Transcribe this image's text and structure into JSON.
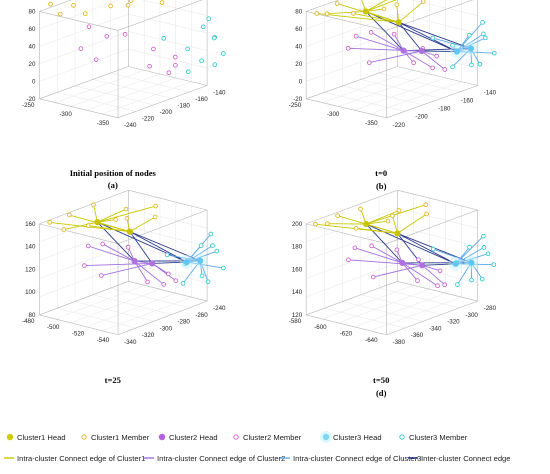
{
  "chart_data": [
    {
      "type": "scatter3d",
      "caption_title": "Initial position of nodes",
      "label": "(a)",
      "xlim": [
        -250,
        -140
      ],
      "ylim": [
        -350,
        -250
      ],
      "zlim": [
        -20,
        80
      ],
      "zticks": [
        "80",
        "60",
        "40",
        "20",
        "0",
        "-20"
      ],
      "left_ticks": [
        "-250",
        "-300",
        "-350"
      ],
      "right_ticks": [
        "-240",
        "-220",
        "-200",
        "-180",
        "-160",
        "-140"
      ],
      "show_edges": false
    },
    {
      "type": "network3d",
      "caption_title": "t=0",
      "label": "(b)",
      "zlim": [
        -20,
        80
      ],
      "zticks": [
        "80",
        "60",
        "40",
        "20",
        "0",
        "-20"
      ],
      "left_ticks": [
        "-250",
        "-300",
        "-350"
      ],
      "right_ticks": [
        "-220",
        "-200",
        "-180",
        "-160",
        "-140"
      ],
      "show_edges": true
    },
    {
      "type": "network3d",
      "caption_title": "t=25",
      "label": "",
      "zlim": [
        80,
        160
      ],
      "zticks": [
        "160",
        "140",
        "120",
        "100",
        "80"
      ],
      "left_ticks": [
        "-480",
        "-500",
        "-520",
        "-540"
      ],
      "right_ticks": [
        "-340",
        "-320",
        "-300",
        "-280",
        "-260",
        "-240"
      ],
      "show_edges": true
    },
    {
      "type": "network3d",
      "caption_title": "t=50",
      "label": "(d)",
      "zlim": [
        120,
        200
      ],
      "zticks": [
        "200",
        "180",
        "160",
        "140",
        "120"
      ],
      "left_ticks": [
        "-580",
        "-600",
        "-620",
        "-640"
      ],
      "right_ticks": [
        "-380",
        "-360",
        "-340",
        "-320",
        "-300",
        "-280"
      ],
      "show_edges": true
    }
  ],
  "legend": {
    "markers": [
      {
        "label": "Cluster1 Head",
        "color": "#cccc00",
        "style": "filled"
      },
      {
        "label": "Cluster1 Member",
        "color": "#e8b020",
        "style": "hollow"
      },
      {
        "label": "Cluster2 Head",
        "color": "#b060e0",
        "style": "filled"
      },
      {
        "label": "Cluster2 Member",
        "color": "#d060d0",
        "style": "hollow"
      },
      {
        "label": "Cluster3 Head",
        "color": "#7fd8f0",
        "style": "filled"
      },
      {
        "label": "Cluster3 Member",
        "color": "#30c0c0",
        "style": "hollow"
      }
    ],
    "lines": [
      {
        "label": "Intra-cluster Connect edge of Cluster1",
        "color": "#c8c800"
      },
      {
        "label": "Intra-cluster Connect edge of Cluster2",
        "color": "#a070e0"
      },
      {
        "label": "Intra-cluster Connect edge of Cluster3",
        "color": "#6aaee8"
      },
      {
        "label": "Inter-cluster Connect edge",
        "color": "#303a90"
      }
    ]
  },
  "colors": {
    "c1_head": "#c8c400",
    "c1_member": "#e0b010",
    "c2_head": "#b070e0",
    "c2_member": "#cc55cc",
    "c3_head": "#60c8f0",
    "c3_member": "#20c8c8",
    "c1_edge": "#c8c800",
    "c2_edge": "#a070e0",
    "c3_edge": "#5aa8e8",
    "inter_edge": "#2c3a8c"
  }
}
